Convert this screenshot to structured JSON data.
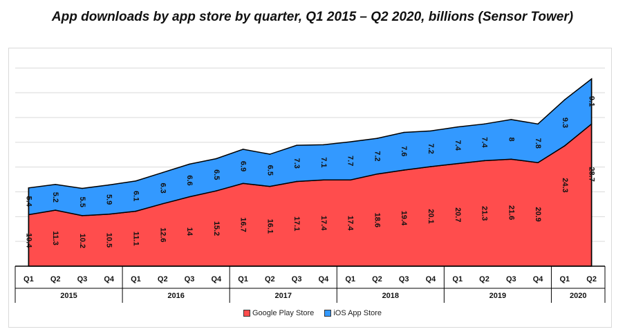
{
  "title": "App downloads by app store by quarter, Q1 2015 – Q2 2020, billions (Sensor Tower)",
  "colors": {
    "google": "#ff4d4d",
    "ios": "#3399ff",
    "grid": "#d9d9d9",
    "axis": "#000000"
  },
  "chart_data": {
    "type": "area",
    "stacked": true,
    "title": "App downloads by app store by quarter, Q1 2015 – Q2 2020, billions (Sensor Tower)",
    "categories": [
      "Q1",
      "Q2",
      "Q3",
      "Q4",
      "Q1",
      "Q2",
      "Q3",
      "Q4",
      "Q1",
      "Q2",
      "Q3",
      "Q4",
      "Q1",
      "Q2",
      "Q3",
      "Q4",
      "Q1",
      "Q2",
      "Q3",
      "Q4",
      "Q1",
      "Q2"
    ],
    "year_groups": [
      {
        "label": "2015",
        "count": 4
      },
      {
        "label": "2016",
        "count": 4
      },
      {
        "label": "2017",
        "count": 4
      },
      {
        "label": "2018",
        "count": 4
      },
      {
        "label": "2019",
        "count": 4
      },
      {
        "label": "2020",
        "count": 2
      }
    ],
    "series": [
      {
        "name": "Google Play Store",
        "values": [
          10.4,
          11.3,
          10.2,
          10.5,
          11.1,
          12.6,
          14,
          15.2,
          16.7,
          16.1,
          17.1,
          17.4,
          17.4,
          18.6,
          19.4,
          20.1,
          20.7,
          21.3,
          21.6,
          20.9,
          24.3,
          28.7
        ]
      },
      {
        "name": "iOS App Store",
        "values": [
          5.4,
          5.2,
          5.5,
          5.9,
          6.1,
          6.3,
          6.6,
          6.5,
          6.9,
          6.5,
          7.3,
          7.1,
          7.7,
          7.2,
          7.6,
          7.2,
          7.4,
          7.4,
          8,
          7.8,
          9.3,
          9.1
        ]
      }
    ],
    "ylim": [
      0,
      42
    ],
    "grid": true,
    "legend": "bottom"
  },
  "legend": {
    "items": [
      {
        "label": "Google Play Store"
      },
      {
        "label": "iOS App Store"
      }
    ]
  }
}
